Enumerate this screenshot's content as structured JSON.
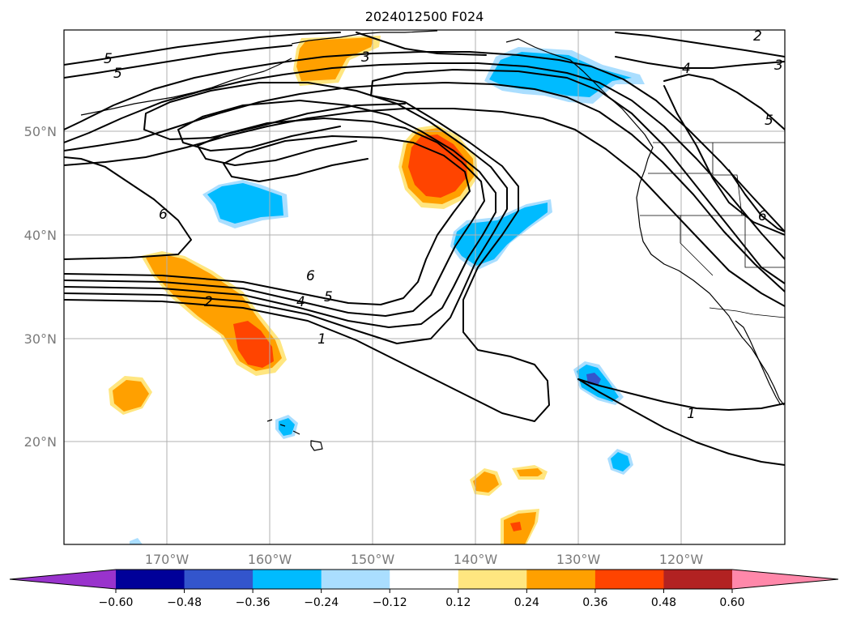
{
  "title": "2024012500 F024",
  "lon_labels": [
    "170°W",
    "160°W",
    "150°W",
    "140°W",
    "130°W",
    "120°W"
  ],
  "lat_labels": [
    "50°N",
    "40°N",
    "30°N",
    "20°N"
  ],
  "colorbar": {
    "colors": [
      "#9933cc",
      "#000099",
      "#3355cc",
      "#00bbff",
      "#aadeff",
      "#ffffff",
      "#ffe680",
      "#ffa000",
      "#ff4400",
      "#b22222",
      "#ff88aa"
    ],
    "tick_labels": [
      "−0.60",
      "−0.48",
      "−0.36",
      "−0.24",
      "−0.12",
      "0.12",
      "0.24",
      "0.36",
      "0.48",
      "0.60"
    ]
  },
  "contour_labels": [
    "5",
    "5",
    "3",
    "2",
    "3",
    "4",
    "5",
    "6",
    "6",
    "4",
    "5",
    "2",
    "1",
    "1",
    "6"
  ]
}
